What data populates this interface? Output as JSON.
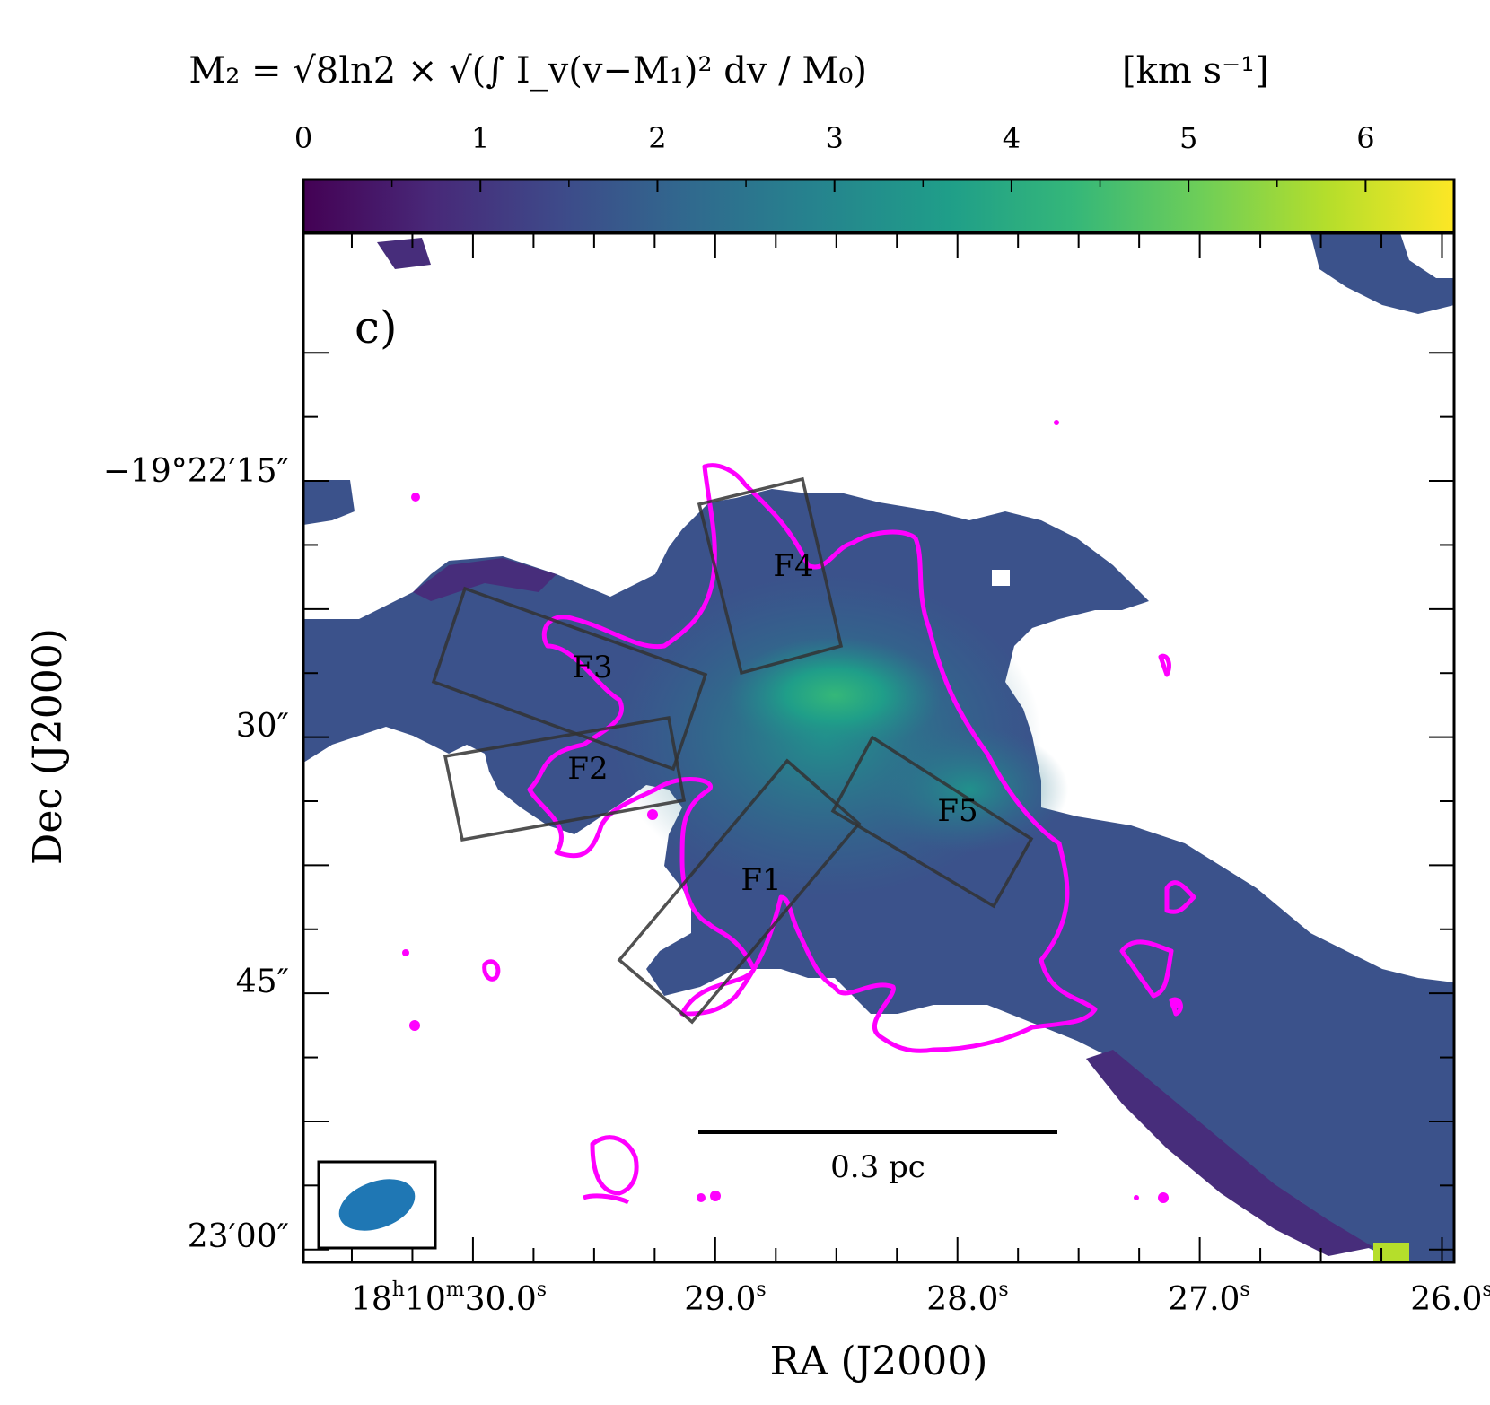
{
  "chart_data": {
    "type": "heatmap",
    "panel_label": "c)",
    "colorbar": {
      "title_lhs": "M₂ = √8ln2 × √(∫ I_v(v−M₁)² dv / M₀)",
      "title_unit": "[km s⁻¹]",
      "ticks": [
        "0",
        "1",
        "2",
        "3",
        "4",
        "5",
        "6"
      ],
      "tick_values": [
        0,
        1,
        2,
        3,
        4,
        5,
        6
      ],
      "range": [
        0,
        6.5
      ],
      "colormap": "viridis",
      "colors": [
        "#440154",
        "#482878",
        "#3e4989",
        "#31688e",
        "#26828e",
        "#1f9e89",
        "#35b779",
        "#6ece58",
        "#b5de2b",
        "#fde725"
      ]
    },
    "xlabel": "RA (J2000)",
    "ylabel": "Dec (J2000)",
    "xticks": [
      {
        "hms": "18h10m30.0s",
        "label": "18",
        "sup1": "h",
        "label2": "10",
        "sup2": "m",
        "label3": "30.0",
        "sup3": "s",
        "value": 30.0
      },
      {
        "label": "29.0",
        "sup": "s",
        "value": 29.0
      },
      {
        "label": "28.0",
        "sup": "s",
        "value": 28.0
      },
      {
        "label": "27.0",
        "sup": "s",
        "value": 27.0
      },
      {
        "label": "26.0",
        "sup": "s",
        "value": 26.0
      }
    ],
    "yticks": [
      {
        "label": "−19°22′15″",
        "value": 15
      },
      {
        "label": "30″",
        "value": 30
      },
      {
        "label": "45″",
        "value": 45
      },
      {
        "label": "23′00″",
        "value": 60
      }
    ],
    "xlim_ra_seconds": [
      30.7,
      25.95
    ],
    "ylim_dec_arcsec_offset": [
      -59.0,
      61.5
    ],
    "regions": [
      {
        "name": "F1"
      },
      {
        "name": "F2"
      },
      {
        "name": "F3"
      },
      {
        "name": "F4"
      },
      {
        "name": "F5"
      }
    ],
    "scalebar": {
      "label": "0.3 pc"
    },
    "peak_m2_kms": 3.6,
    "contour_color": "#ff00ff",
    "beam_color": "#1f77b4"
  }
}
